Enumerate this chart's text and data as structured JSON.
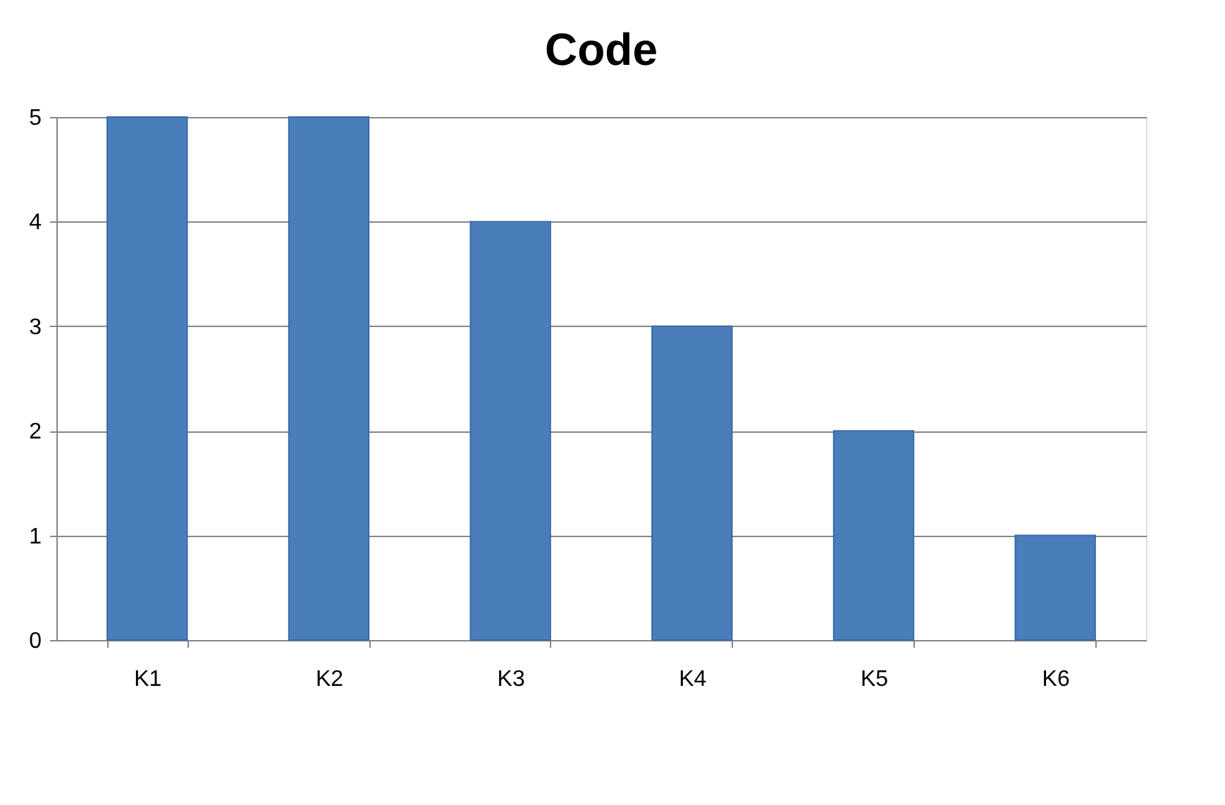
{
  "chart_data": {
    "type": "bar",
    "title": "Code",
    "categories": [
      "K1",
      "K2",
      "K3",
      "K4",
      "K5",
      "K6"
    ],
    "values": [
      5,
      5,
      4,
      3,
      2,
      1
    ],
    "color": "#4a7ebb",
    "ylim": [
      0,
      5
    ],
    "yticks": [
      0,
      1,
      2,
      3,
      4,
      5
    ],
    "grid": "y"
  }
}
